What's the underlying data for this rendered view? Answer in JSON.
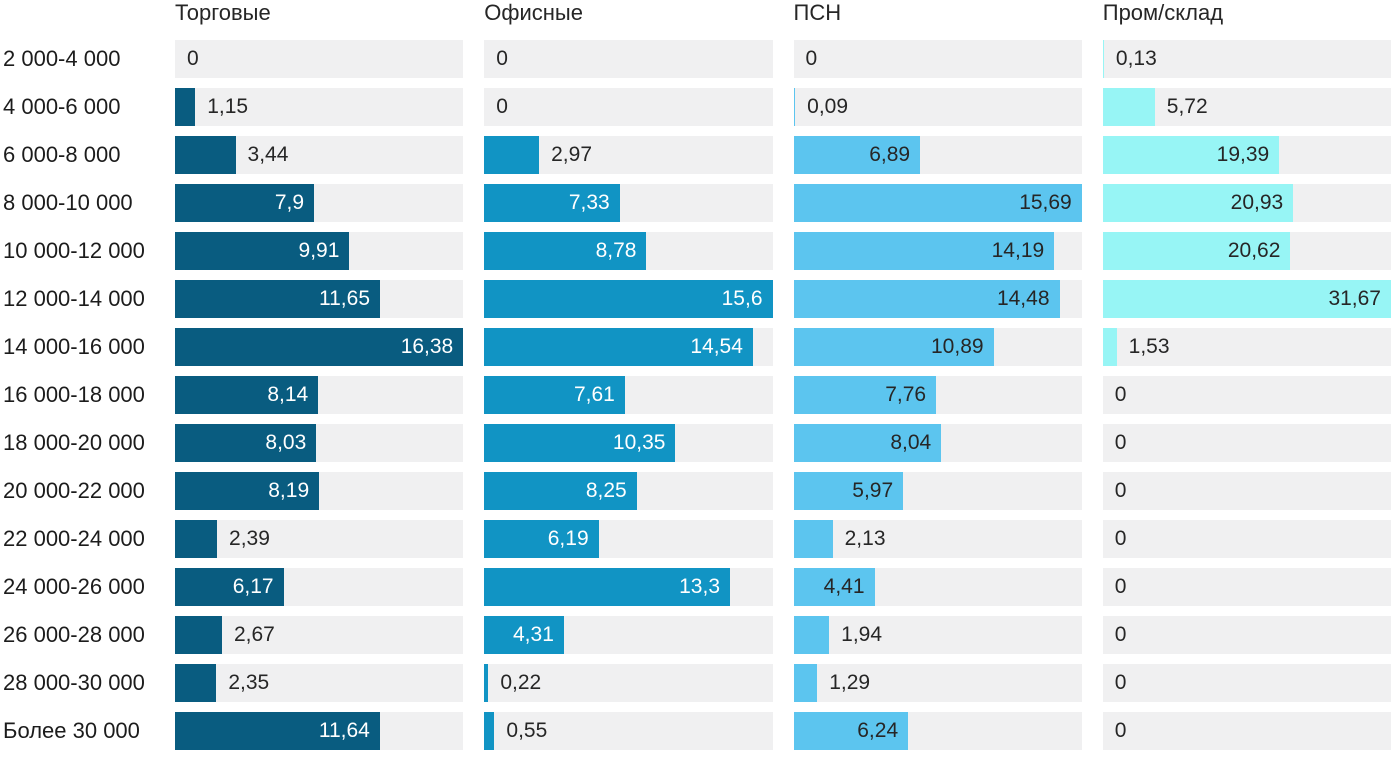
{
  "chart_data": {
    "type": "bar",
    "orientation": "horizontal",
    "title": "",
    "xlabel": "",
    "ylabel": "",
    "legend_position": "column-headers-top",
    "grid": false,
    "scale": "each-series-scaled-to-its-own-max",
    "value_format": "decimal-comma",
    "track_color": "#f0f0f1",
    "outside_label_color": "#262626",
    "categories": [
      "2 000-4 000",
      "4 000-6 000",
      "6 000-8 000",
      "8 000-10 000",
      "10 000-12 000",
      "12 000-14 000",
      "14 000-16 000",
      "16 000-18 000",
      "18 000-20 000",
      "20 000-22 000",
      "22 000-24 000",
      "24 000-26 000",
      "26 000-28 000",
      "28 000-30 000",
      "Более 30 000"
    ],
    "series": [
      {
        "name": "Торговые",
        "color": "#095c80",
        "inside_label_color": "#ffffff",
        "values": [
          0,
          1.15,
          3.44,
          7.9,
          9.91,
          11.65,
          16.38,
          8.14,
          8.03,
          8.19,
          2.39,
          6.17,
          2.67,
          2.35,
          11.64
        ]
      },
      {
        "name": "Офисные",
        "color": "#1194c4",
        "inside_label_color": "#ffffff",
        "values": [
          0,
          0,
          2.97,
          7.33,
          8.78,
          15.6,
          14.54,
          7.61,
          10.35,
          8.25,
          6.19,
          13.3,
          4.31,
          0.22,
          0.55
        ]
      },
      {
        "name": "ПСН",
        "color": "#5cc5ef",
        "inside_label_color": "#262626",
        "values": [
          0,
          0.09,
          6.89,
          15.69,
          14.19,
          14.48,
          10.89,
          7.76,
          8.04,
          5.97,
          2.13,
          4.41,
          1.94,
          1.29,
          6.24
        ]
      },
      {
        "name": "Пром/склад",
        "color": "#97f5f5",
        "inside_label_color": "#262626",
        "values": [
          0.13,
          5.72,
          19.39,
          20.93,
          20.62,
          31.67,
          1.53,
          0,
          0,
          0,
          0,
          0,
          0,
          0,
          0
        ]
      }
    ]
  }
}
